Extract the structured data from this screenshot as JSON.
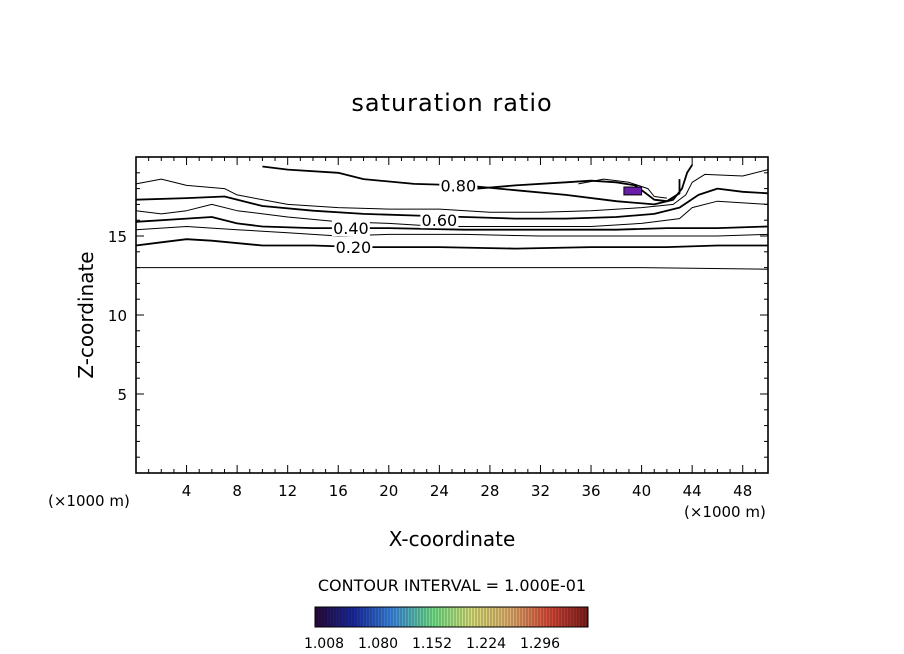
{
  "chart_data": {
    "type": "contour",
    "title": "saturation ratio",
    "xlabel": "X-coordinate",
    "ylabel": "Z-coordinate",
    "x_unit_left": "(×1000 m)",
    "x_unit_right": "(×1000 m)",
    "xlim": [
      0,
      50
    ],
    "ylim": [
      0,
      20
    ],
    "x_ticks": [
      4,
      8,
      12,
      16,
      20,
      24,
      28,
      32,
      36,
      40,
      44,
      48
    ],
    "y_ticks": [
      5,
      10,
      15
    ],
    "contour_labels": [
      {
        "text": "0.80",
        "x": 25.5,
        "y": 18.2
      },
      {
        "text": "0.60",
        "x": 24.0,
        "y": 16.0
      },
      {
        "text": "0.40",
        "x": 17.0,
        "y": 15.5
      },
      {
        "text": "0.20",
        "x": 17.2,
        "y": 14.3
      }
    ],
    "contours": [
      {
        "level": 0.1,
        "points": [
          [
            0,
            13.0
          ],
          [
            10,
            13.0
          ],
          [
            20,
            13.0
          ],
          [
            30,
            13.0
          ],
          [
            40,
            13.0
          ],
          [
            50,
            12.9
          ]
        ]
      },
      {
        "level": 0.2,
        "points": [
          [
            0,
            14.4
          ],
          [
            2,
            14.6
          ],
          [
            4,
            14.8
          ],
          [
            6,
            14.7
          ],
          [
            10,
            14.4
          ],
          [
            14,
            14.4
          ],
          [
            18,
            14.3
          ],
          [
            24,
            14.3
          ],
          [
            30,
            14.2
          ],
          [
            36,
            14.3
          ],
          [
            42,
            14.3
          ],
          [
            46,
            14.4
          ],
          [
            50,
            14.4
          ]
        ]
      },
      {
        "level": 0.3,
        "points": [
          [
            0,
            15.4
          ],
          [
            4,
            15.6
          ],
          [
            8,
            15.4
          ],
          [
            12,
            15.2
          ],
          [
            16,
            15.0
          ],
          [
            20,
            15.1
          ],
          [
            26,
            15.1
          ],
          [
            32,
            15.0
          ],
          [
            38,
            15.0
          ],
          [
            42,
            15.0
          ],
          [
            46,
            15.0
          ],
          [
            50,
            15.1
          ]
        ]
      },
      {
        "level": 0.4,
        "points": [
          [
            0,
            15.9
          ],
          [
            4,
            16.1
          ],
          [
            6,
            16.2
          ],
          [
            8,
            15.8
          ],
          [
            10,
            15.6
          ],
          [
            14,
            15.5
          ],
          [
            20,
            15.5
          ],
          [
            26,
            15.4
          ],
          [
            32,
            15.4
          ],
          [
            38,
            15.4
          ],
          [
            42,
            15.5
          ],
          [
            46,
            15.5
          ],
          [
            50,
            15.6
          ]
        ]
      },
      {
        "level": 0.5,
        "points": [
          [
            0,
            16.6
          ],
          [
            2,
            16.4
          ],
          [
            4,
            16.6
          ],
          [
            6,
            17.0
          ],
          [
            8,
            16.6
          ],
          [
            12,
            16.2
          ],
          [
            16,
            15.9
          ],
          [
            20,
            15.8
          ],
          [
            24,
            15.6
          ],
          [
            28,
            15.6
          ],
          [
            32,
            15.6
          ],
          [
            36,
            15.6
          ],
          [
            40,
            15.8
          ],
          [
            43,
            16.1
          ],
          [
            44,
            16.8
          ],
          [
            46,
            17.2
          ],
          [
            50,
            17.0
          ]
        ]
      },
      {
        "level": 0.6,
        "points": [
          [
            0,
            17.3
          ],
          [
            4,
            17.4
          ],
          [
            7,
            17.5
          ],
          [
            10,
            16.9
          ],
          [
            14,
            16.6
          ],
          [
            18,
            16.4
          ],
          [
            22,
            16.3
          ],
          [
            26,
            16.2
          ],
          [
            30,
            16.1
          ],
          [
            34,
            16.1
          ],
          [
            38,
            16.2
          ],
          [
            41,
            16.4
          ],
          [
            43,
            16.8
          ],
          [
            44.5,
            17.6
          ],
          [
            46,
            18.0
          ],
          [
            48,
            17.8
          ],
          [
            50,
            17.7
          ]
        ]
      },
      {
        "level": 0.7,
        "points": [
          [
            0,
            18.3
          ],
          [
            2,
            18.6
          ],
          [
            4,
            18.2
          ],
          [
            7,
            18.0
          ],
          [
            8,
            17.6
          ],
          [
            12,
            17.0
          ],
          [
            16,
            16.8
          ],
          [
            20,
            16.7
          ],
          [
            24,
            16.7
          ],
          [
            28,
            16.5
          ],
          [
            32,
            16.5
          ],
          [
            36,
            16.6
          ],
          [
            40,
            16.8
          ],
          [
            42.5,
            17.0
          ],
          [
            43.5,
            17.6
          ],
          [
            44,
            18.4
          ],
          [
            45,
            18.9
          ],
          [
            48,
            18.8
          ],
          [
            50,
            19.2
          ]
        ]
      },
      {
        "level": 0.8,
        "points": [
          [
            10,
            19.4
          ],
          [
            12,
            19.2
          ],
          [
            16,
            19.0
          ],
          [
            18,
            18.6
          ],
          [
            22,
            18.3
          ],
          [
            26,
            18.2
          ],
          [
            30,
            17.9
          ],
          [
            34,
            17.6
          ],
          [
            38,
            17.2
          ],
          [
            41,
            17.0
          ],
          [
            42.5,
            17.3
          ],
          [
            43.2,
            18.0
          ],
          [
            43.6,
            19.0
          ],
          [
            44,
            19.5
          ]
        ]
      },
      {
        "level": 0.8,
        "points": [
          [
            27,
            18.0
          ],
          [
            30,
            18.2
          ],
          [
            34,
            18.4
          ],
          [
            36,
            18.5
          ],
          [
            38,
            18.4
          ],
          [
            39.5,
            18.2
          ],
          [
            40.5,
            17.6
          ],
          [
            41,
            17.3
          ],
          [
            42,
            17.2
          ],
          [
            43,
            17.7
          ],
          [
            43,
            18.6
          ]
        ]
      },
      {
        "level": 0.9,
        "points": [
          [
            35,
            18.3
          ],
          [
            37,
            18.6
          ],
          [
            39,
            18.4
          ],
          [
            40.5,
            18.0
          ],
          [
            41,
            17.5
          ],
          [
            42,
            17.4
          ]
        ]
      }
    ],
    "grid": false,
    "colorbar": {
      "label": "CONTOUR INTERVAL = 1.000E-01",
      "tick_labels": [
        "1.008",
        "1.080",
        "1.152",
        "1.224",
        "1.296"
      ],
      "colors": [
        "#2a0a3a",
        "#1a2aa0",
        "#3f8be0",
        "#6fe08a",
        "#d8e07a",
        "#e0b06f",
        "#d84b3a",
        "#7a1d1d"
      ]
    },
    "highlight_region": {
      "x": [
        38.6,
        40.0
      ],
      "y": [
        17.6,
        18.1
      ],
      "color": "#6a1ea8",
      "value": 1.008
    }
  }
}
